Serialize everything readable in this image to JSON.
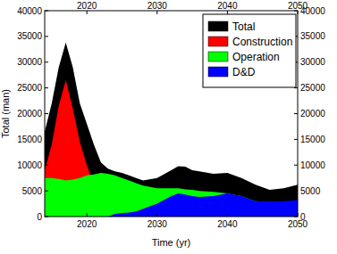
{
  "chart_data": {
    "type": "area",
    "stacked": false,
    "legend": "upper right",
    "x_label": "Time (yr)",
    "y_label": "Total (man)",
    "x": [
      2014,
      2015,
      2016,
      2017,
      2018,
      2019,
      2020,
      2021,
      2022,
      2023,
      2024,
      2025,
      2026,
      2027,
      2028,
      2030,
      2032,
      2033,
      2034,
      2035,
      2036,
      2038,
      2040,
      2042,
      2044,
      2046,
      2048,
      2050
    ],
    "xlim": [
      2014,
      2050
    ],
    "xticks": [
      2020,
      2030,
      2040,
      2050
    ],
    "ylim": [
      0,
      40000
    ],
    "yticks": [
      0,
      5000,
      10000,
      15000,
      20000,
      25000,
      30000,
      35000,
      40000
    ],
    "y2lim": [
      0,
      40000
    ],
    "y2ticks": [
      0,
      5000,
      10000,
      15000,
      20000,
      25000,
      30000,
      35000,
      40000
    ],
    "series": [
      {
        "name": "Total",
        "color": "#000000",
        "values": [
          16500,
          22000,
          29000,
          33800,
          29000,
          22000,
          18000,
          14000,
          10500,
          9300,
          8800,
          8500,
          8000,
          7500,
          7000,
          7500,
          9000,
          9800,
          9700,
          9000,
          8800,
          8300,
          8500,
          7500,
          6200,
          5200,
          5500,
          6200
        ]
      },
      {
        "name": "Construction",
        "color": "#ff0000",
        "values": [
          9000,
          14000,
          21500,
          26500,
          21000,
          14500,
          10000,
          6000,
          2500,
          800,
          0,
          0,
          0,
          0,
          0,
          0,
          0,
          0,
          0,
          0,
          0,
          0,
          0,
          0,
          0,
          0,
          0,
          0
        ]
      },
      {
        "name": "Operation",
        "color": "#00ff00",
        "values": [
          7500,
          7500,
          7300,
          7000,
          7200,
          7500,
          8000,
          8200,
          8500,
          8300,
          8000,
          7500,
          7000,
          6500,
          6000,
          5500,
          5500,
          5500,
          5300,
          5200,
          5000,
          4800,
          4500,
          4000,
          3000,
          2800,
          2800,
          3000
        ]
      },
      {
        "name": "D&D",
        "color": "#0000ff",
        "values": [
          0,
          0,
          0,
          0,
          0,
          0,
          0,
          0,
          0,
          0,
          500,
          700,
          800,
          1000,
          1500,
          2500,
          4000,
          4500,
          4300,
          4000,
          3800,
          4000,
          4500,
          4000,
          3000,
          3000,
          3000,
          3200
        ]
      }
    ]
  }
}
